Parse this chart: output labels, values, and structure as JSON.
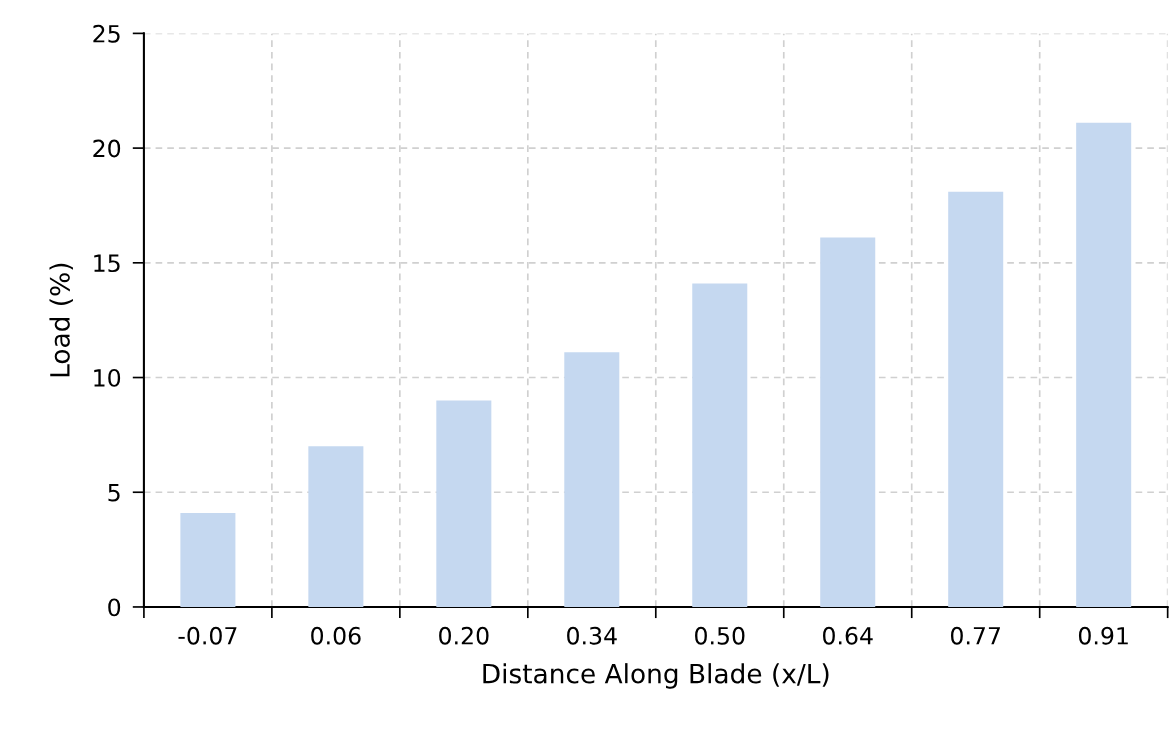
{
  "chart_data": {
    "type": "bar",
    "xlabel": "Distance Along Blade (x/L)",
    "ylabel": "Load (%)",
    "categories": [
      "-0.07",
      "0.06",
      "0.20",
      "0.34",
      "0.50",
      "0.64",
      "0.77",
      "0.91"
    ],
    "values": [
      4.1,
      7.0,
      9.0,
      11.1,
      14.1,
      16.1,
      18.1,
      21.1
    ],
    "color": "#c5d8f0",
    "ylim": [
      0,
      25
    ],
    "yticks": [
      0,
      5,
      10,
      15,
      20,
      25
    ],
    "grid": true
  }
}
